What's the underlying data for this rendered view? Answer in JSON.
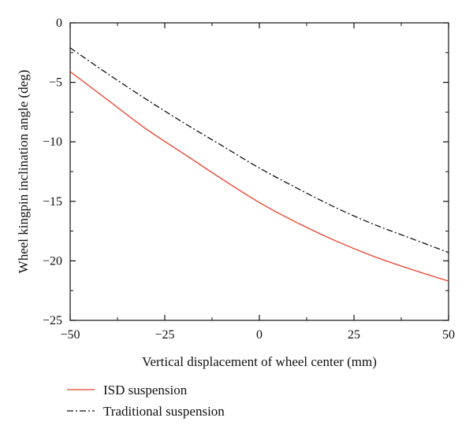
{
  "chart_data": {
    "type": "line",
    "title": "",
    "xlabel": "Vertical displacement of wheel center (mm)",
    "ylabel": "Wheel kingpin inclination angle (deg)",
    "xlim": [
      -50,
      50
    ],
    "ylim": [
      -25,
      0
    ],
    "x_ticks": [
      -50,
      -25,
      0,
      25,
      50
    ],
    "x_tick_labels": [
      "−50",
      "−25",
      "0",
      "25",
      "50"
    ],
    "y_ticks": [
      0,
      -5,
      -10,
      -15,
      -20,
      -25
    ],
    "y_tick_labels": [
      "0",
      "−5",
      "−10",
      "−15",
      "−20",
      "−25"
    ],
    "grid": false,
    "legend_position": "bottom",
    "series": [
      {
        "name": "ISD suspension",
        "color": "#e8402a",
        "line_style": "solid",
        "x": [
          -50,
          -40,
          -30,
          -20,
          -10,
          0,
          10,
          20,
          30,
          40,
          50
        ],
        "y": [
          -4.1,
          -6.5,
          -8.9,
          -11.0,
          -13.1,
          -15.1,
          -16.8,
          -18.3,
          -19.6,
          -20.7,
          -21.7
        ]
      },
      {
        "name": "Traditional suspension",
        "color": "#111111",
        "line_style": "dash-dot",
        "x": [
          -50,
          -40,
          -30,
          -20,
          -10,
          0,
          10,
          20,
          30,
          40,
          50
        ],
        "y": [
          -2.1,
          -4.3,
          -6.4,
          -8.4,
          -10.3,
          -12.2,
          -13.9,
          -15.5,
          -16.9,
          -18.1,
          -19.3
        ]
      }
    ]
  }
}
